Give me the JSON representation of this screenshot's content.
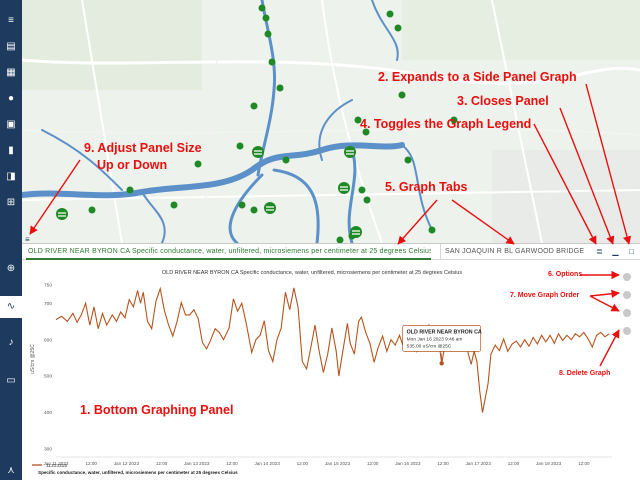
{
  "sidebar": {
    "icons": [
      "layers-icon",
      "map-icon",
      "grid-icon",
      "globe-icon",
      "briefcase-icon",
      "chart-bars-icon",
      "toggle-icon",
      "zoom-icon",
      "graph-icon",
      "bell-icon",
      "print-icon",
      "share-icon"
    ],
    "active_icon": "graph-icon"
  },
  "tabs": {
    "active_label": "OLD RIVER NEAR BYRON CA Specific conductance, water, unfiltered, microsiemens per centimeter at 25 degrees Celsius",
    "second_label": "SAN JOAQUIN R BL GARWOOD BRIDGE",
    "legend_icon": "list-icon",
    "minimize_icon": "minimize-icon",
    "maximize_icon": "square-icon",
    "resize_icon": "hamburger-icon"
  },
  "colors": {
    "accent": "#2e7d32",
    "sidebar": "#1f3a5f",
    "series": "#b5541e",
    "annotation": "#e8100f",
    "water": "#5b90c8",
    "site_marker": "#1f8a25"
  },
  "tooltip": {
    "site": "OLD RIVER NEAR BYRON CA",
    "time": "Mon Jan 16 2023 9:46 am",
    "value": "535.00 uS/cm @25C"
  },
  "annotations": {
    "a1": "1. Bottom Graphing Panel",
    "a2": "2. Expands to a Side Panel Graph",
    "a3": "3. Closes Panel",
    "a4": "4. Toggles the Graph Legend",
    "a5": "5. Graph Tabs",
    "a6": "6. Options",
    "a7": "7. Move Graph Order",
    "a8": "8. Delete Graph",
    "a9_line1": "9. Adjust Panel Size",
    "a9_line2": "Up or Down"
  },
  "chart_data": {
    "type": "line",
    "title": "OLD RIVER NEAR BYRON CA Specific conductance, water, unfiltered, microsiemens per centimeter at 25 degrees Celsius",
    "ylabel": "uS/cm @25C",
    "xlabel": "",
    "ylim": [
      300,
      750
    ],
    "yticks": [
      "300",
      "400",
      "500",
      "600",
      "700"
    ],
    "xticks": [
      {
        "label": "Jan 11 2023",
        "x": 0
      },
      {
        "label": "12:00",
        "x": 0.5
      },
      {
        "label": "Jan 12 2023",
        "x": 1
      },
      {
        "label": "12:00",
        "x": 1.5
      },
      {
        "label": "Jan 13 2023",
        "x": 2
      },
      {
        "label": "12:00",
        "x": 2.5
      },
      {
        "label": "Jan 14 2023",
        "x": 3
      },
      {
        "label": "12:00",
        "x": 3.5
      },
      {
        "label": "Jan 15 2023",
        "x": 4
      },
      {
        "label": "12:00",
        "x": 4.5
      },
      {
        "label": "Jan 16 2023",
        "x": 5
      },
      {
        "label": "12:00",
        "x": 5.5
      },
      {
        "label": "Jan 17 2023",
        "x": 6
      },
      {
        "label": "12:00",
        "x": 6.5
      },
      {
        "label": "Jan 18 2023",
        "x": 7
      },
      {
        "label": "12:00",
        "x": 7.5
      }
    ],
    "grid": false,
    "legend": {
      "name": "11313315",
      "description": "Specific conductance, water, unfiltered, microsiemens per centimeter at 25 degrees Celsius",
      "placement": "bottom-left"
    },
    "series": [
      {
        "name": "11313315",
        "points": [
          [
            0.0,
            655
          ],
          [
            0.08,
            664
          ],
          [
            0.16,
            650
          ],
          [
            0.24,
            672
          ],
          [
            0.3,
            648
          ],
          [
            0.36,
            668
          ],
          [
            0.42,
            700
          ],
          [
            0.48,
            640
          ],
          [
            0.54,
            690
          ],
          [
            0.6,
            630
          ],
          [
            0.66,
            672
          ],
          [
            0.72,
            640
          ],
          [
            0.8,
            668
          ],
          [
            0.86,
            650
          ],
          [
            0.92,
            676
          ],
          [
            0.98,
            660
          ],
          [
            1.04,
            710
          ],
          [
            1.1,
            690
          ],
          [
            1.16,
            735
          ],
          [
            1.2,
            700
          ],
          [
            1.24,
            730
          ],
          [
            1.3,
            650
          ],
          [
            1.36,
            630
          ],
          [
            1.42,
            705
          ],
          [
            1.48,
            740
          ],
          [
            1.54,
            680
          ],
          [
            1.6,
            640
          ],
          [
            1.66,
            610
          ],
          [
            1.72,
            650
          ],
          [
            1.78,
            702
          ],
          [
            1.84,
            668
          ],
          [
            1.9,
            668
          ],
          [
            1.96,
            682
          ],
          [
            2.02,
            658
          ],
          [
            2.08,
            592
          ],
          [
            2.14,
            575
          ],
          [
            2.2,
            600
          ],
          [
            2.26,
            630
          ],
          [
            2.32,
            620
          ],
          [
            2.38,
            600
          ],
          [
            2.46,
            632
          ],
          [
            2.52,
            712
          ],
          [
            2.58,
            678
          ],
          [
            2.64,
            700
          ],
          [
            2.7,
            648
          ],
          [
            2.78,
            565
          ],
          [
            2.84,
            600
          ],
          [
            2.9,
            612
          ],
          [
            2.96,
            652
          ],
          [
            3.02,
            570
          ],
          [
            3.08,
            540
          ],
          [
            3.14,
            600
          ],
          [
            3.2,
            632
          ],
          [
            3.26,
            730
          ],
          [
            3.32,
            682
          ],
          [
            3.38,
            742
          ],
          [
            3.44,
            688
          ],
          [
            3.5,
            540
          ],
          [
            3.56,
            520
          ],
          [
            3.62,
            578
          ],
          [
            3.68,
            640
          ],
          [
            3.74,
            568
          ],
          [
            3.8,
            510
          ],
          [
            3.86,
            560
          ],
          [
            3.92,
            632
          ],
          [
            3.98,
            570
          ],
          [
            4.02,
            500
          ],
          [
            4.06,
            550
          ],
          [
            4.1,
            598
          ],
          [
            4.14,
            645
          ],
          [
            4.18,
            590
          ],
          [
            4.24,
            560
          ],
          [
            4.3,
            650
          ],
          [
            4.34,
            662
          ],
          [
            4.4,
            620
          ],
          [
            4.46,
            590
          ],
          [
            4.52,
            538
          ],
          [
            4.58,
            580
          ],
          [
            4.64,
            610
          ],
          [
            4.7,
            568
          ],
          [
            4.76,
            600
          ],
          [
            4.82,
            585
          ],
          [
            4.88,
            612
          ],
          [
            4.94,
            578
          ],
          [
            5.0,
            598
          ],
          [
            5.06,
            630
          ],
          [
            5.12,
            568
          ],
          [
            5.18,
            592
          ],
          [
            5.24,
            610
          ],
          [
            5.3,
            640
          ],
          [
            5.36,
            606
          ],
          [
            5.42,
            620
          ],
          [
            5.46,
            564
          ],
          [
            5.48,
            535
          ],
          [
            5.52,
            578
          ],
          [
            5.58,
            596
          ],
          [
            5.64,
            580
          ],
          [
            5.7,
            598
          ],
          [
            5.76,
            574
          ],
          [
            5.82,
            596
          ],
          [
            5.86,
            560
          ],
          [
            5.9,
            532
          ],
          [
            5.94,
            568
          ],
          [
            5.98,
            540
          ],
          [
            6.02,
            460
          ],
          [
            6.06,
            400
          ],
          [
            6.1,
            440
          ],
          [
            6.14,
            480
          ],
          [
            6.18,
            560
          ],
          [
            6.24,
            585
          ],
          [
            6.3,
            570
          ],
          [
            6.36,
            602
          ],
          [
            6.42,
            568
          ],
          [
            6.48,
            588
          ],
          [
            6.54,
            596
          ],
          [
            6.6,
            580
          ],
          [
            6.66,
            600
          ],
          [
            6.72,
            582
          ],
          [
            6.78,
            606
          ],
          [
            6.84,
            588
          ],
          [
            6.9,
            612
          ],
          [
            6.96,
            594
          ],
          [
            7.02,
            612
          ],
          [
            7.08,
            590
          ],
          [
            7.14,
            616
          ],
          [
            7.2,
            598
          ],
          [
            7.26,
            612
          ],
          [
            7.32,
            600
          ],
          [
            7.38,
            616
          ],
          [
            7.44,
            608
          ],
          [
            7.5,
            620
          ],
          [
            7.56,
            602
          ],
          [
            7.62,
            580
          ],
          [
            7.68,
            612
          ],
          [
            7.74,
            620
          ],
          [
            7.8,
            608
          ],
          [
            7.86,
            616
          ]
        ]
      }
    ],
    "tooltip_point": [
      5.48,
      535
    ]
  }
}
